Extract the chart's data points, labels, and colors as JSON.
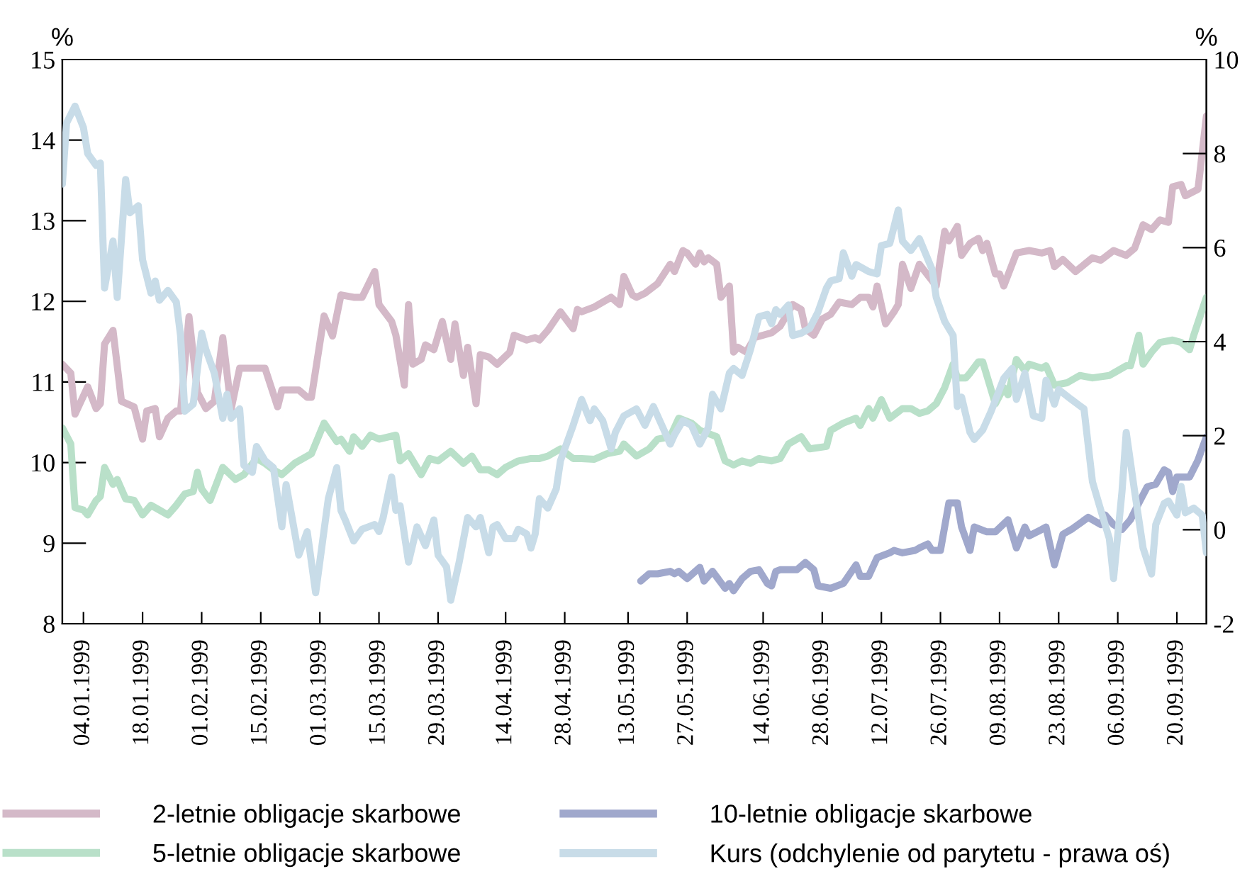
{
  "chart_data": {
    "type": "line",
    "ylabel": "%",
    "y2label": "%",
    "xlim": [
      "1998-12-30",
      "1999-09-27"
    ],
    "xticks": [
      {
        "value": "1999-01-04",
        "label": "04.01.1999"
      },
      {
        "value": "1999-01-18",
        "label": "18.01.1999"
      },
      {
        "value": "1999-02-01",
        "label": "01.02.1999"
      },
      {
        "value": "1999-02-15",
        "label": "15.02.1999"
      },
      {
        "value": "1999-03-01",
        "label": "01.03.1999"
      },
      {
        "value": "1999-03-15",
        "label": "15.03.1999"
      },
      {
        "value": "1999-03-29",
        "label": "29.03.1999"
      },
      {
        "value": "1999-04-14",
        "label": "14.04.1999"
      },
      {
        "value": "1999-04-28",
        "label": "28.04.1999"
      },
      {
        "value": "1999-05-13",
        "label": "13.05.1999"
      },
      {
        "value": "1999-05-27",
        "label": "27.05.1999"
      },
      {
        "value": "1999-06-14",
        "label": "14.06.1999"
      },
      {
        "value": "1999-06-28",
        "label": "28.06.1999"
      },
      {
        "value": "1999-07-12",
        "label": "12.07.1999"
      },
      {
        "value": "1999-07-26",
        "label": "26.07.1999"
      },
      {
        "value": "1999-08-09",
        "label": "09.08.1999"
      },
      {
        "value": "1999-08-23",
        "label": "23.08.1999"
      },
      {
        "value": "1999-09-06",
        "label": "06.09.1999"
      },
      {
        "value": "1999-09-20",
        "label": "20.09.1999"
      }
    ],
    "ylim": [
      8,
      15
    ],
    "yticks": [
      8,
      9,
      10,
      11,
      12,
      13,
      14,
      15
    ],
    "y2lim": [
      -2,
      10
    ],
    "y2ticks": [
      -2,
      0,
      2,
      4,
      6,
      8,
      10
    ],
    "grid": false,
    "legend": "bottom",
    "marker": "none",
    "line_style": "solid",
    "series": [
      {
        "name": "2-letnie obligacje skarbowe",
        "color": "#d4b9c8",
        "x": [
          "1998-12-30",
          "1999-01-01",
          "1999-01-02",
          "1999-01-05",
          "1999-01-07",
          "1999-01-08",
          "1999-01-09",
          "1999-01-11",
          "1999-01-13",
          "1999-01-16",
          "1999-01-18",
          "1999-01-19",
          "1999-01-21",
          "1999-01-22",
          "1999-01-24",
          "1999-01-26",
          "1999-01-27",
          "1999-01-29",
          "1999-01-31",
          "1999-02-02",
          "1999-02-04",
          "1999-02-06",
          "1999-02-08",
          "1999-02-10",
          "1999-02-16",
          "1999-02-19",
          "1999-02-20",
          "1999-02-24",
          "1999-02-26",
          "1999-02-27",
          "1999-03-02",
          "1999-03-04",
          "1999-03-06",
          "1999-03-09",
          "1999-03-11",
          "1999-03-14",
          "1999-03-15",
          "1999-03-18",
          "1999-03-19",
          "1999-03-21",
          "1999-03-22",
          "1999-03-23",
          "1999-03-25",
          "1999-03-26",
          "1999-03-28",
          "1999-03-30",
          "1999-04-01",
          "1999-04-02",
          "1999-04-04",
          "1999-04-05",
          "1999-04-07",
          "1999-04-08",
          "1999-04-10",
          "1999-04-12",
          "1999-04-15",
          "1999-04-16",
          "1999-04-19",
          "1999-04-21",
          "1999-04-22",
          "1999-04-24",
          "1999-04-27",
          "1999-04-30",
          "1999-05-01",
          "1999-05-02",
          "1999-05-05",
          "1999-05-09",
          "1999-05-11",
          "1999-05-12",
          "1999-05-14",
          "1999-05-15",
          "1999-05-17",
          "1999-05-20",
          "1999-05-23",
          "1999-05-24",
          "1999-05-26",
          "1999-05-27",
          "1999-05-29",
          "1999-05-30",
          "1999-05-31",
          "1999-06-01",
          "1999-06-03",
          "1999-06-04",
          "1999-06-06",
          "1999-06-07",
          "1999-06-08",
          "1999-06-10",
          "1999-06-12",
          "1999-06-16",
          "1999-06-18",
          "1999-06-21",
          "1999-06-23",
          "1999-06-24",
          "1999-06-26",
          "1999-06-28",
          "1999-06-30",
          "1999-07-02",
          "1999-07-05",
          "1999-07-07",
          "1999-07-09",
          "1999-07-10",
          "1999-07-11",
          "1999-07-13",
          "1999-07-15",
          "1999-07-16",
          "1999-07-17",
          "1999-07-19",
          "1999-07-21",
          "1999-07-25",
          "1999-07-27",
          "1999-07-28",
          "1999-07-30",
          "1999-07-31",
          "1999-08-02",
          "1999-08-04",
          "1999-08-05",
          "1999-08-06",
          "1999-08-08",
          "1999-08-09",
          "1999-08-10",
          "1999-08-13",
          "1999-08-16",
          "1999-08-19",
          "1999-08-21",
          "1999-08-22",
          "1999-08-24",
          "1999-08-27",
          "1999-08-31",
          "1999-09-02",
          "1999-09-05",
          "1999-09-08",
          "1999-09-10",
          "1999-09-12",
          "1999-09-14",
          "1999-09-16",
          "1999-09-18",
          "1999-09-19",
          "1999-09-21",
          "1999-09-22",
          "1999-09-25",
          "1999-09-27"
        ],
        "values": [
          11.22,
          11.11,
          10.6,
          10.94,
          10.67,
          10.73,
          11.47,
          11.64,
          10.76,
          10.69,
          10.29,
          10.64,
          10.67,
          10.32,
          10.55,
          10.64,
          10.64,
          11.81,
          10.87,
          10.67,
          10.76,
          11.55,
          10.67,
          11.17,
          11.17,
          10.69,
          10.9,
          10.9,
          10.81,
          10.81,
          11.82,
          11.57,
          12.08,
          12.05,
          12.05,
          12.37,
          11.96,
          11.75,
          11.58,
          10.96,
          11.96,
          11.22,
          11.28,
          11.46,
          11.4,
          11.75,
          11.28,
          11.72,
          11.08,
          11.43,
          10.73,
          11.34,
          11.31,
          11.22,
          11.37,
          11.58,
          11.52,
          11.55,
          11.52,
          11.64,
          11.87,
          11.66,
          11.9,
          11.87,
          11.93,
          12.05,
          11.96,
          12.31,
          12.08,
          12.05,
          12.1,
          12.22,
          12.46,
          12.37,
          12.63,
          12.6,
          12.46,
          12.6,
          12.49,
          12.54,
          12.46,
          12.05,
          12.19,
          11.37,
          11.43,
          11.37,
          11.55,
          11.61,
          11.69,
          11.96,
          11.9,
          11.66,
          11.58,
          11.78,
          11.84,
          11.99,
          11.96,
          12.05,
          12.05,
          11.93,
          12.19,
          11.72,
          11.87,
          11.96,
          12.46,
          12.16,
          12.46,
          12.19,
          12.87,
          12.75,
          12.93,
          12.57,
          12.72,
          12.78,
          12.63,
          12.72,
          12.34,
          12.34,
          12.19,
          12.6,
          12.63,
          12.6,
          12.63,
          12.43,
          12.52,
          12.37,
          12.54,
          12.51,
          12.63,
          12.57,
          12.66,
          12.95,
          12.89,
          13.01,
          12.98,
          13.42,
          13.45,
          13.31,
          13.39,
          14.3
        ]
      },
      {
        "name": "5-letnie obligacje skarbowe",
        "color": "#b9e0c9",
        "x": [
          "1998-12-30",
          "1999-01-01",
          "1999-01-02",
          "1999-01-04",
          "1999-01-05",
          "1999-01-07",
          "1999-01-08",
          "1999-01-09",
          "1999-01-11",
          "1999-01-12",
          "1999-01-14",
          "1999-01-16",
          "1999-01-18",
          "1999-01-20",
          "1999-01-22",
          "1999-01-24",
          "1999-01-26",
          "1999-01-28",
          "1999-01-30",
          "1999-01-31",
          "1999-02-01",
          "1999-02-03",
          "1999-02-06",
          "1999-02-09",
          "1999-02-11",
          "1999-02-14",
          "1999-02-16",
          "1999-02-18",
          "1999-02-20",
          "1999-02-23",
          "1999-02-25",
          "1999-02-27",
          "1999-03-02",
          "1999-03-05",
          "1999-03-06",
          "1999-03-08",
          "1999-03-09",
          "1999-03-11",
          "1999-03-13",
          "1999-03-15",
          "1999-03-19",
          "1999-03-20",
          "1999-03-22",
          "1999-03-25",
          "1999-03-27",
          "1999-03-29",
          "1999-04-01",
          "1999-04-04",
          "1999-04-06",
          "1999-04-08",
          "1999-04-10",
          "1999-04-12",
          "1999-04-14",
          "1999-04-17",
          "1999-04-20",
          "1999-04-22",
          "1999-04-24",
          "1999-04-27",
          "1999-04-30",
          "1999-05-02",
          "1999-05-05",
          "1999-05-08",
          "1999-05-11",
          "1999-05-12",
          "1999-05-15",
          "1999-05-18",
          "1999-05-20",
          "1999-05-23",
          "1999-05-25",
          "1999-05-28",
          "1999-05-30",
          "1999-06-03",
          "1999-06-05",
          "1999-06-07",
          "1999-06-09",
          "1999-06-11",
          "1999-06-13",
          "1999-06-16",
          "1999-06-18",
          "1999-06-20",
          "1999-06-23",
          "1999-06-25",
          "1999-06-29",
          "1999-06-30",
          "1999-07-03",
          "1999-07-06",
          "1999-07-07",
          "1999-07-09",
          "1999-07-10",
          "1999-07-12",
          "1999-07-14",
          "1999-07-17",
          "1999-07-19",
          "1999-07-21",
          "1999-07-23",
          "1999-07-25",
          "1999-07-27",
          "1999-07-29",
          "1999-07-30",
          "1999-08-01",
          "1999-08-02",
          "1999-08-04",
          "1999-08-05",
          "1999-08-08",
          "1999-08-10",
          "1999-08-11",
          "1999-08-13",
          "1999-08-15",
          "1999-08-16",
          "1999-08-19",
          "1999-08-20",
          "1999-08-22",
          "1999-08-25",
          "1999-08-28",
          "1999-08-31",
          "1999-09-04",
          "1999-09-05",
          "1999-09-08",
          "1999-09-09",
          "1999-09-11",
          "1999-09-12",
          "1999-09-14",
          "1999-09-16",
          "1999-09-19",
          "1999-09-21",
          "1999-09-23",
          "1999-09-24",
          "1999-09-27"
        ],
        "values": [
          10.43,
          10.23,
          9.44,
          9.41,
          9.35,
          9.53,
          9.58,
          9.94,
          9.73,
          9.79,
          9.55,
          9.53,
          9.35,
          9.47,
          9.41,
          9.35,
          9.47,
          9.61,
          9.64,
          9.88,
          9.67,
          9.53,
          9.94,
          9.79,
          9.85,
          10.05,
          9.99,
          9.91,
          9.85,
          9.99,
          10.05,
          10.11,
          10.49,
          10.26,
          10.29,
          10.14,
          10.32,
          10.2,
          10.34,
          10.29,
          10.34,
          10.02,
          10.11,
          9.85,
          10.05,
          10.02,
          10.14,
          9.99,
          10.08,
          9.91,
          9.91,
          9.85,
          9.94,
          10.02,
          10.05,
          10.05,
          10.08,
          10.17,
          10.05,
          10.05,
          10.04,
          10.11,
          10.14,
          10.23,
          10.08,
          10.17,
          10.29,
          10.32,
          10.55,
          10.49,
          10.4,
          10.32,
          10.02,
          9.97,
          10.02,
          9.99,
          10.05,
          10.02,
          10.05,
          10.23,
          10.32,
          10.17,
          10.2,
          10.4,
          10.49,
          10.55,
          10.46,
          10.67,
          10.55,
          10.78,
          10.55,
          10.67,
          10.67,
          10.61,
          10.64,
          10.73,
          10.93,
          11.22,
          11.05,
          11.05,
          11.11,
          11.25,
          11.25,
          10.73,
          10.93,
          10.84,
          11.28,
          11.14,
          11.22,
          11.17,
          11.2,
          10.96,
          10.99,
          11.08,
          11.05,
          11.08,
          11.11,
          11.2,
          11.2,
          11.58,
          11.22,
          11.37,
          11.49,
          11.52,
          11.49,
          11.4,
          11.58,
          12.05
        ]
      },
      {
        "name": "10-letnie obligacje skarbowe",
        "color": "#a0a8cc",
        "x": [
          "1999-05-16",
          "1999-05-18",
          "1999-05-20",
          "1999-05-23",
          "1999-05-24",
          "1999-05-25",
          "1999-05-27",
          "1999-05-30",
          "1999-05-31",
          "1999-06-02",
          "1999-06-05",
          "1999-06-06",
          "1999-06-07",
          "1999-06-09",
          "1999-06-11",
          "1999-06-13",
          "1999-06-15",
          "1999-06-16",
          "1999-06-17",
          "1999-06-18",
          "1999-06-22",
          "1999-06-24",
          "1999-06-26",
          "1999-06-27",
          "1999-06-30",
          "1999-07-03",
          "1999-07-06",
          "1999-07-07",
          "1999-07-09",
          "1999-07-11",
          "1999-07-14",
          "1999-07-15",
          "1999-07-17",
          "1999-07-20",
          "1999-07-21",
          "1999-07-23",
          "1999-07-24",
          "1999-07-26",
          "1999-07-28",
          "1999-07-30",
          "1999-07-31",
          "1999-08-02",
          "1999-08-03",
          "1999-08-06",
          "1999-08-08",
          "1999-08-11",
          "1999-08-13",
          "1999-08-15",
          "1999-08-16",
          "1999-08-19",
          "1999-08-20",
          "1999-08-22",
          "1999-08-24",
          "1999-08-26",
          "1999-08-30",
          "1999-09-02",
          "1999-09-03",
          "1999-09-05",
          "1999-09-07",
          "1999-09-09",
          "1999-09-11",
          "1999-09-13",
          "1999-09-15",
          "1999-09-17",
          "1999-09-18",
          "1999-09-19",
          "1999-09-20",
          "1999-09-23",
          "1999-09-25",
          "1999-09-27"
        ],
        "values": [
          8.53,
          8.62,
          8.62,
          8.65,
          8.62,
          8.65,
          8.56,
          8.7,
          8.53,
          8.65,
          8.44,
          8.5,
          8.41,
          8.56,
          8.65,
          8.67,
          8.5,
          8.47,
          8.65,
          8.67,
          8.67,
          8.76,
          8.67,
          8.47,
          8.44,
          8.5,
          8.73,
          8.59,
          8.59,
          8.82,
          8.88,
          8.91,
          8.88,
          8.91,
          8.94,
          8.99,
          8.91,
          8.91,
          9.5,
          9.5,
          9.2,
          8.91,
          9.2,
          9.14,
          9.14,
          9.29,
          8.94,
          9.2,
          9.09,
          9.17,
          9.2,
          8.73,
          9.11,
          9.17,
          9.32,
          9.23,
          9.35,
          9.23,
          9.17,
          9.29,
          9.5,
          9.7,
          9.73,
          9.91,
          9.88,
          9.64,
          9.82,
          9.82,
          10.03,
          10.32
        ]
      },
      {
        "name": "Kurs (odchylenie od parytetu - prawa oś)",
        "color": "#c8dce8",
        "axis": "y2",
        "x": [
          "1998-12-30",
          "1998-12-31",
          "1999-01-02",
          "1999-01-04",
          "1999-01-05",
          "1999-01-07",
          "1999-01-08",
          "1999-01-09",
          "1999-01-11",
          "1999-01-12",
          "1999-01-14",
          "1999-01-15",
          "1999-01-17",
          "1999-01-18",
          "1999-01-20",
          "1999-01-21",
          "1999-01-22",
          "1999-01-24",
          "1999-01-26",
          "1999-01-27",
          "1999-01-28",
          "1999-01-30",
          "1999-02-01",
          "1999-02-02",
          "1999-02-04",
          "1999-02-06",
          "1999-02-07",
          "1999-02-08",
          "1999-02-10",
          "1999-02-11",
          "1999-02-13",
          "1999-02-14",
          "1999-02-16",
          "1999-02-18",
          "1999-02-20",
          "1999-02-21",
          "1999-02-24",
          "1999-02-26",
          "1999-02-28",
          "1999-03-03",
          "1999-03-05",
          "1999-03-06",
          "1999-03-07",
          "1999-03-09",
          "1999-03-11",
          "1999-03-14",
          "1999-03-15",
          "1999-03-16",
          "1999-03-18",
          "1999-03-19",
          "1999-03-20",
          "1999-03-22",
          "1999-03-24",
          "1999-03-26",
          "1999-03-28",
          "1999-03-29",
          "1999-03-31",
          "1999-04-01",
          "1999-04-03",
          "1999-04-05",
          "1999-04-07",
          "1999-04-08",
          "1999-04-10",
          "1999-04-11",
          "1999-04-12",
          "1999-04-14",
          "1999-04-16",
          "1999-04-17",
          "1999-04-19",
          "1999-04-20",
          "1999-04-21",
          "1999-04-22",
          "1999-04-24",
          "1999-04-26",
          "1999-04-27",
          "1999-04-30",
          "1999-05-02",
          "1999-05-04",
          "1999-05-05",
          "1999-05-07",
          "1999-05-09",
          "1999-05-10",
          "1999-05-12",
          "1999-05-15",
          "1999-05-17",
          "1999-05-19",
          "1999-05-21",
          "1999-05-23",
          "1999-05-24",
          "1999-05-26",
          "1999-05-28",
          "1999-05-30",
          "1999-06-01",
          "1999-06-02",
          "1999-06-04",
          "1999-06-06",
          "1999-06-07",
          "1999-06-09",
          "1999-06-11",
          "1999-06-13",
          "1999-06-15",
          "1999-06-16",
          "1999-06-17",
          "1999-06-18",
          "1999-06-20",
          "1999-06-21",
          "1999-06-23",
          "1999-06-25",
          "1999-06-27",
          "1999-06-29",
          "1999-06-30",
          "1999-07-02",
          "1999-07-03",
          "1999-07-05",
          "1999-07-06",
          "1999-07-09",
          "1999-07-11",
          "1999-07-12",
          "1999-07-14",
          "1999-07-16",
          "1999-07-17",
          "1999-07-19",
          "1999-07-21",
          "1999-07-24",
          "1999-07-25",
          "1999-07-27",
          "1999-07-29",
          "1999-07-30",
          "1999-07-31",
          "1999-08-02",
          "1999-08-03",
          "1999-08-05",
          "1999-08-07",
          "1999-08-10",
          "1999-08-12",
          "1999-08-13",
          "1999-08-15",
          "1999-08-17",
          "1999-08-19",
          "1999-08-20",
          "1999-08-22",
          "1999-08-23",
          "1999-08-26",
          "1999-08-29",
          "1999-08-31",
          "1999-09-02",
          "1999-09-04",
          "1999-09-05",
          "1999-09-07",
          "1999-09-08",
          "1999-09-10",
          "1999-09-12",
          "1999-09-14",
          "1999-09-15",
          "1999-09-17",
          "1999-09-18",
          "1999-09-20",
          "1999-09-21",
          "1999-09-22",
          "1999-09-24",
          "1999-09-26",
          "1999-09-27"
        ],
        "values": [
          7.35,
          8.65,
          9.01,
          8.55,
          8.0,
          7.75,
          7.8,
          5.14,
          6.14,
          4.94,
          7.45,
          6.74,
          6.89,
          5.74,
          5.03,
          5.29,
          4.88,
          5.09,
          4.84,
          4.13,
          2.52,
          2.67,
          4.18,
          3.83,
          3.33,
          2.37,
          2.88,
          2.37,
          2.57,
          1.37,
          1.22,
          1.77,
          1.47,
          1.32,
          0.06,
          0.96,
          -0.54,
          -0.04,
          -1.34,
          0.66,
          1.32,
          0.41,
          0.21,
          -0.24,
          0.01,
          0.11,
          -0.04,
          0.26,
          1.12,
          0.41,
          0.51,
          -0.69,
          0.06,
          -0.34,
          0.21,
          -0.54,
          -0.79,
          -1.5,
          -0.69,
          0.26,
          0.06,
          0.26,
          -0.49,
          0.06,
          0.11,
          -0.19,
          -0.19,
          0.01,
          -0.09,
          -0.39,
          -0.09,
          0.66,
          0.46,
          0.87,
          1.47,
          2.22,
          2.77,
          2.32,
          2.57,
          2.32,
          1.72,
          2.07,
          2.42,
          2.57,
          2.22,
          2.62,
          2.22,
          1.82,
          2.02,
          2.32,
          2.22,
          1.82,
          2.17,
          2.88,
          2.57,
          3.33,
          3.43,
          3.28,
          3.83,
          4.53,
          4.58,
          4.38,
          4.68,
          4.58,
          4.78,
          4.13,
          4.18,
          4.28,
          4.63,
          5.14,
          5.29,
          5.34,
          5.89,
          5.39,
          5.64,
          5.49,
          5.44,
          6.04,
          6.09,
          6.8,
          6.14,
          5.94,
          6.19,
          5.54,
          4.94,
          4.43,
          4.13,
          2.62,
          2.82,
          2.07,
          1.92,
          2.12,
          2.52,
          3.22,
          3.43,
          2.77,
          3.33,
          2.42,
          2.37,
          3.18,
          2.67,
          2.98,
          2.77,
          2.57,
          1.02,
          0.41,
          -0.19,
          -1.04,
          0.81,
          2.07,
          0.81,
          -0.39,
          -0.94,
          0.11,
          0.56,
          0.61,
          0.31,
          0.92,
          0.36,
          0.46,
          0.31,
          -0.49
        ]
      }
    ]
  }
}
